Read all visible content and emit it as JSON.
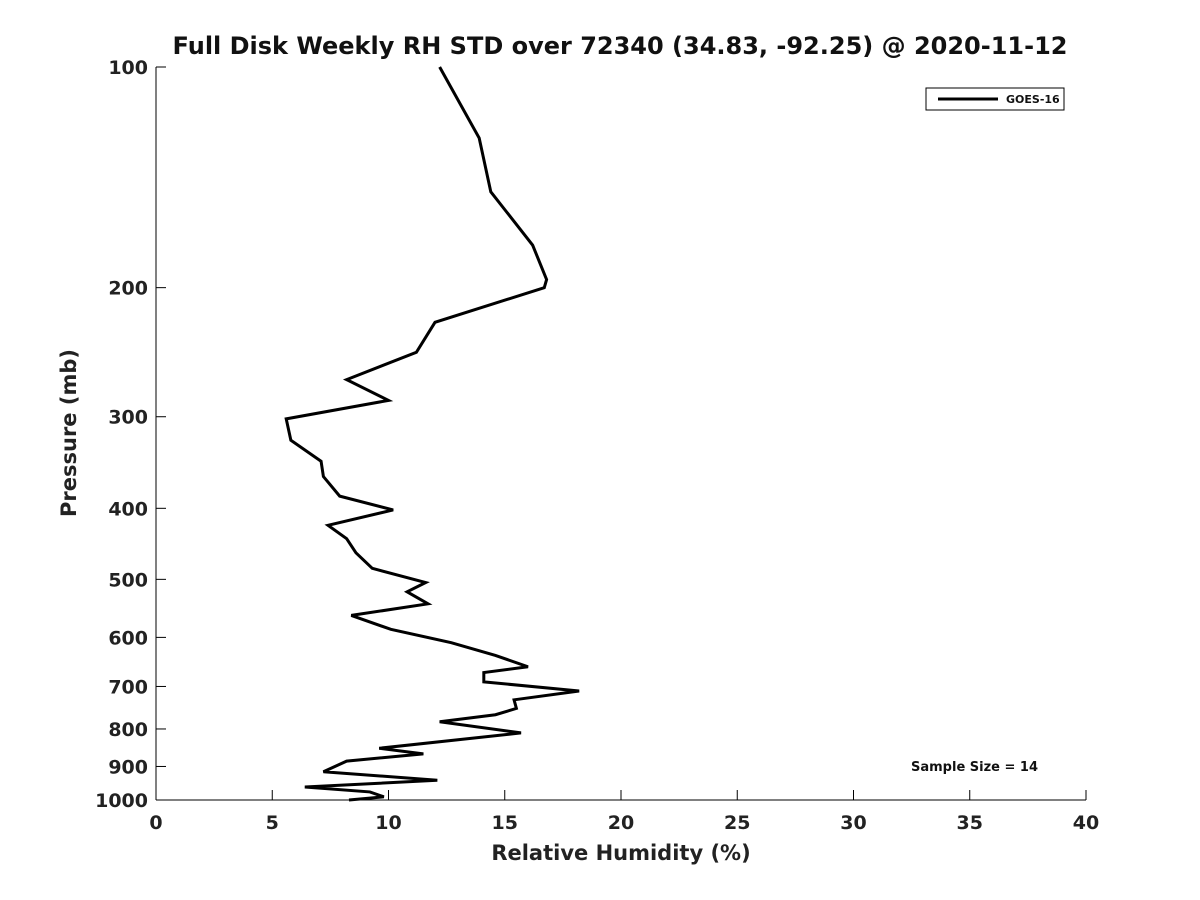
{
  "chart_data": {
    "type": "line",
    "title": "Full Disk Weekly RH STD over 72340 (34.83, -92.25) @ 2020-11-12",
    "xlabel": "Relative Humidity (%)",
    "ylabel": "Pressure (mb)",
    "xlim": [
      0,
      40
    ],
    "ylim": [
      1000,
      100
    ],
    "y_scale": "log",
    "y_inverted": true,
    "grid": false,
    "legend_position": "top-right",
    "x_ticks": [
      "0",
      "5",
      "10",
      "15",
      "20",
      "25",
      "30",
      "35",
      "40"
    ],
    "y_ticks": [
      "100",
      "200",
      "300",
      "400",
      "500",
      "600",
      "700",
      "800",
      "900",
      "1000"
    ],
    "series": [
      {
        "name": "GOES-16",
        "color": "#000000",
        "x": [
          12.2,
          13.9,
          14.4,
          16.2,
          16.8,
          16.7,
          12.0,
          11.2,
          8.2,
          10.0,
          5.6,
          5.8,
          7.1,
          7.2,
          7.9,
          10.2,
          7.4,
          8.2,
          8.6,
          9.3,
          11.6,
          10.8,
          11.7,
          8.4,
          10.1,
          12.7,
          14.6,
          16.0,
          14.1,
          14.1,
          18.2,
          15.4,
          15.5,
          14.6,
          12.2,
          15.7,
          9.6,
          11.5,
          8.2,
          7.2,
          12.1,
          6.4,
          9.2,
          9.8,
          8.3
        ],
        "y": [
          100,
          125,
          148,
          175,
          195,
          200,
          223,
          245,
          267,
          285,
          302,
          323,
          345,
          362,
          385,
          402,
          422,
          440,
          460,
          483,
          505,
          520,
          540,
          560,
          585,
          610,
          635,
          658,
          670,
          690,
          710,
          730,
          750,
          765,
          782,
          810,
          850,
          865,
          885,
          915,
          940,
          960,
          975,
          990,
          1000
        ]
      }
    ],
    "annotations": [
      "Sample Size = 14"
    ]
  }
}
